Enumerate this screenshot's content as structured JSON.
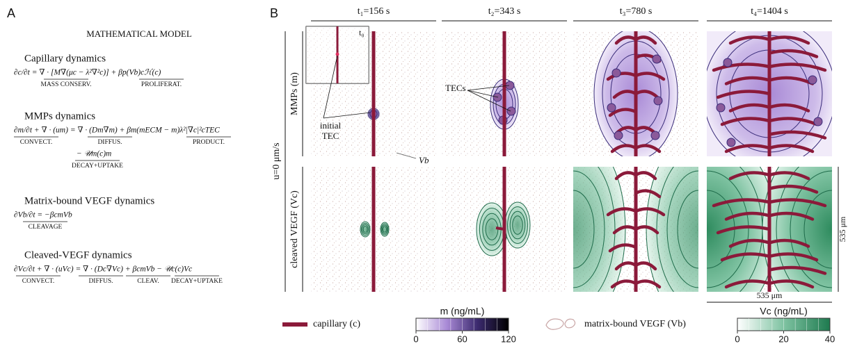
{
  "panel_a": {
    "label": "A",
    "title": "MATHEMATICAL MODEL",
    "sections": [
      {
        "heading": "Capillary dynamics",
        "color": "#8b1a3a",
        "equations": [
          {
            "text": "∂c/∂t = ∇ · [M∇(μc − λ²∇²c)] + βp(Vb)cℋ(c)",
            "terms": [
              "MASS CONSERV.",
              "PROLIFERAT."
            ]
          }
        ]
      },
      {
        "heading": "MMPs dynamics",
        "color": "#5e4b8b",
        "equations": [
          {
            "text": "∂m/∂t + ∇ · (um) = ∇ · (Dm∇m) + βm(mECM − m)λ²|∇c|²cTEC",
            "terms": [
              "CONVECT.",
              "DIFFUS.",
              "PRODUCT."
            ]
          },
          {
            "text": "− 𝒰m(c)m",
            "terms": [
              "DECAY+UPTAKE"
            ]
          }
        ]
      },
      {
        "heading": "Matrix-bound VEGF dynamics",
        "color": "#7a7a7a",
        "equations": [
          {
            "text": "∂Vb/∂t = −βcmVb",
            "terms": [
              "CLEAVAGE"
            ]
          }
        ]
      },
      {
        "heading": "Cleaved-VEGF dynamics",
        "color": "#1e7a4f",
        "equations": [
          {
            "text": "∂Vc/∂t + ∇ · (uVc) = ∇ · (Dc∇Vc) + βcmVb − 𝒰c(c)Vc",
            "terms": [
              "CONVECT.",
              "DIFFUS.",
              "CLEAV.",
              "DECAY+UPTAKE"
            ]
          }
        ]
      }
    ]
  },
  "panel_b": {
    "label": "B",
    "columns": [
      "t₁=156 s",
      "t₂=343 s",
      "t₃=780 s",
      "t₄=1404 s"
    ],
    "side_label": "u=0 μm/s",
    "rows": [
      "MMPs (m)",
      "cleaved VEGF (Vc)"
    ],
    "annotations": {
      "t0": "t₀",
      "initial_tec": [
        "initial",
        "TEC"
      ],
      "tecs": "TECs",
      "vb": "Vb",
      "scale_x": "535 μm",
      "scale_y": "535 μm"
    }
  },
  "legend": {
    "capillary": {
      "label": "capillary (c)",
      "color": "#8b1a3a"
    },
    "colorbar_m": {
      "label": "m (ng/mL)",
      "lim": [
        0,
        120
      ],
      "ticks": [
        0,
        60,
        120
      ],
      "colors": [
        "#ffffff",
        "#a98ad6",
        "#3b2a6e",
        "#000000"
      ]
    },
    "matrix_vegf": {
      "label": "matrix-bound VEGF (Vb)"
    },
    "colorbar_vc": {
      "label": "Vc (ng/mL)",
      "lim": [
        0,
        40
      ],
      "ticks": [
        0,
        20,
        40
      ],
      "colors": [
        "#ffffff",
        "#7fc3a2",
        "#1e7a4f"
      ]
    }
  }
}
